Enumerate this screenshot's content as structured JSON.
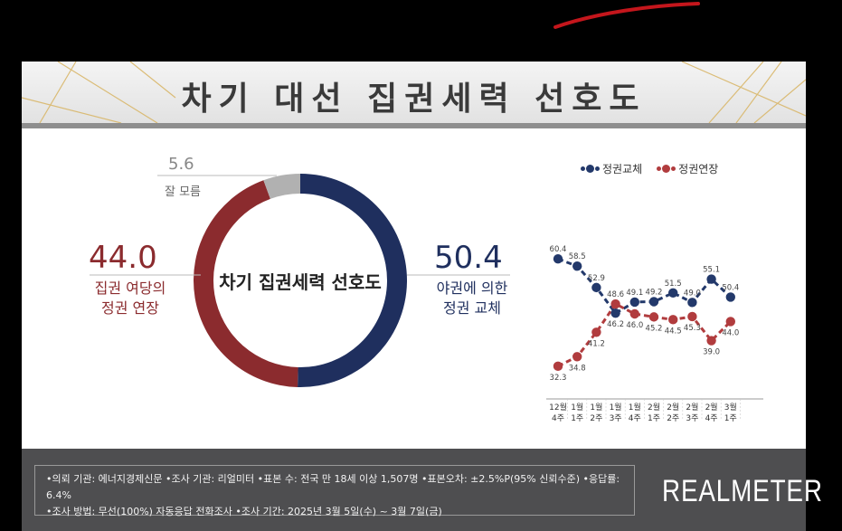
{
  "header": {
    "title": "차기 대선 집권세력 선호도"
  },
  "donut": {
    "center_label": "차기 집권세력 선호도",
    "segments": [
      {
        "name": "야권에 의한 정권 교체",
        "value": 50.4,
        "label_line1": "야권에 의한",
        "label_line2": "정권 교체",
        "color": "#1f2f5e"
      },
      {
        "name": "집권 여당의 정권 연장",
        "value": 44.0,
        "label_line1": "집권 여당의",
        "label_line2": "정권 연장",
        "color": "#8b2b2e"
      },
      {
        "name": "잘 모름",
        "value": 5.6,
        "label_line1": "잘 모름",
        "color": "#b1b1b1"
      }
    ],
    "value_texts": {
      "change": "50.4",
      "extend": "44.0",
      "unknown": "5.6"
    }
  },
  "chart_data": {
    "type": "line",
    "legend": [
      "정권교체",
      "정권연장"
    ],
    "x": [
      [
        "12월",
        "4주"
      ],
      [
        "1월",
        "1주"
      ],
      [
        "1월",
        "2주"
      ],
      [
        "1월",
        "3주"
      ],
      [
        "1월",
        "4주"
      ],
      [
        "2월",
        "1주"
      ],
      [
        "2월",
        "2주"
      ],
      [
        "2월",
        "3주"
      ],
      [
        "2월",
        "4주"
      ],
      [
        "3월",
        "1주"
      ]
    ],
    "series": [
      {
        "name": "정권교체",
        "color": "#23396b",
        "values": [
          60.4,
          58.5,
          52.9,
          46.2,
          49.1,
          49.2,
          51.5,
          49.0,
          55.1,
          50.4
        ],
        "labels": [
          "60.4",
          "58.5",
          "52.9",
          "46.2",
          "49.1",
          "49.2",
          "51.5",
          "49.0",
          "55.1",
          "50.4"
        ]
      },
      {
        "name": "정권연장",
        "color": "#b13c3e",
        "values": [
          32.3,
          34.8,
          41.2,
          48.6,
          46.0,
          45.2,
          44.5,
          45.3,
          39.0,
          44.0
        ],
        "labels": [
          "32.3",
          "34.8",
          "41.2",
          "48.6",
          "46.0",
          "45.2",
          "44.5",
          "45.3",
          "39.0",
          "44.0"
        ]
      }
    ],
    "ylim": [
      28,
      64
    ]
  },
  "footer": {
    "line1": "•의뢰 기관: 에너지경제신문 •조사 기관: 리얼미터 •표본 수: 전국 만 18세 이상 1,507명 •표본오차: ±2.5%P(95% 신뢰수준) •응답률: 6.4%",
    "line2": "•조사 방법: 무선(100%) 자동응답 전화조사 •조사 기간: 2025년 3월 5일(수) ~ 3월 7일(금)",
    "brand": "REALMETER"
  }
}
